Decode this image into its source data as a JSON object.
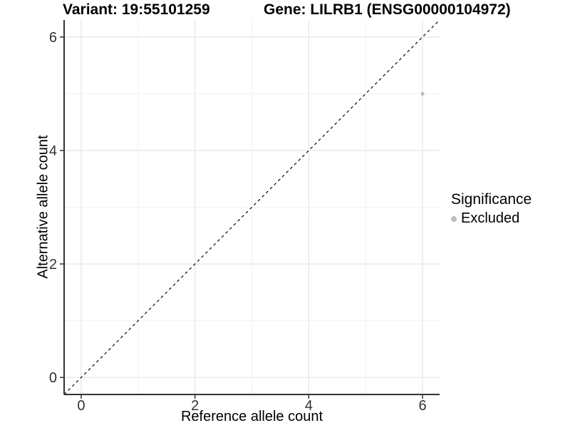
{
  "page": {
    "background": "#ffffff"
  },
  "chart_data": {
    "type": "scatter",
    "titles": {
      "left": "Variant: 19:55101259",
      "right": "Gene: LILRB1 (ENSG00000104972)"
    },
    "xlabel": "Reference allele count",
    "ylabel": "Alternative allele count",
    "xlim": [
      -0.3,
      6.3
    ],
    "ylim": [
      -0.3,
      6.3
    ],
    "x_ticks": [
      0,
      2,
      4,
      6
    ],
    "y_ticks": [
      0,
      2,
      4,
      6
    ],
    "x_minor_ticks": [
      1,
      3,
      5
    ],
    "y_minor_ticks": [
      1,
      3,
      5
    ],
    "grid": "major and minor gridlines on white panel",
    "points": [
      {
        "x": 6,
        "y": 5,
        "series": "Excluded"
      }
    ],
    "reference_line": {
      "kind": "identity y=x",
      "style": "dashed",
      "color": "#1a1a1a"
    },
    "legend": {
      "title": "Significance",
      "position": "right",
      "entries": [
        {
          "label": "Excluded",
          "color": "#bdbdbd",
          "marker": "circle"
        }
      ]
    },
    "colors": {
      "point": "#bdbdbd",
      "grid_major": "#e6e6e6",
      "grid_minor": "#f2f2f2",
      "axis_line": "#333333",
      "tick_mark": "#333333",
      "tick_label": "#333333",
      "title_text": "#000000"
    }
  }
}
